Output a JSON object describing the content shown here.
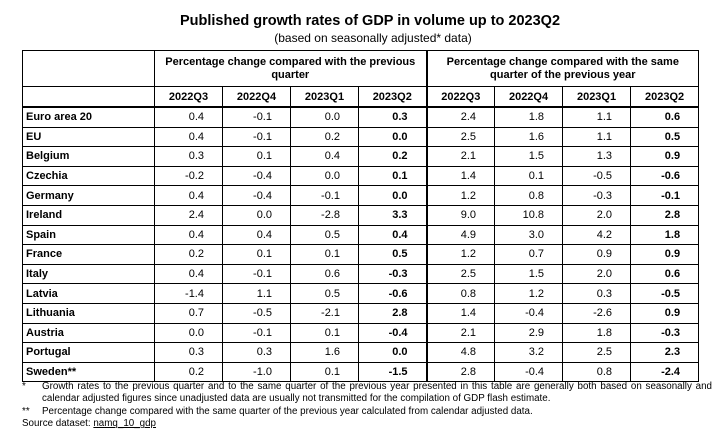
{
  "title": "Published growth rates of GDP in volume up to 2023Q2",
  "subtitle": "(based on seasonally adjusted* data)",
  "table": {
    "group_headers": [
      "Percentage change compared with the previous quarter",
      "Percentage change compared with the same quarter of the previous year"
    ],
    "periods": [
      "2022Q3",
      "2022Q4",
      "2023Q1",
      "2023Q2",
      "2022Q3",
      "2022Q4",
      "2023Q1",
      "2023Q2"
    ],
    "rows": [
      {
        "country": "Euro area 20",
        "values": [
          "0.4",
          "-0.1",
          "0.0",
          "0.3",
          "2.4",
          "1.8",
          "1.1",
          "0.6"
        ]
      },
      {
        "country": "EU",
        "values": [
          "0.4",
          "-0.1",
          "0.2",
          "0.0",
          "2.5",
          "1.6",
          "1.1",
          "0.5"
        ]
      },
      {
        "country": "Belgium",
        "values": [
          "0.3",
          "0.1",
          "0.4",
          "0.2",
          "2.1",
          "1.5",
          "1.3",
          "0.9"
        ]
      },
      {
        "country": "Czechia",
        "values": [
          "-0.2",
          "-0.4",
          "0.0",
          "0.1",
          "1.4",
          "0.1",
          "-0.5",
          "-0.6"
        ]
      },
      {
        "country": "Germany",
        "values": [
          "0.4",
          "-0.4",
          "-0.1",
          "0.0",
          "1.2",
          "0.8",
          "-0.3",
          "-0.1"
        ]
      },
      {
        "country": "Ireland",
        "values": [
          "2.4",
          "0.0",
          "-2.8",
          "3.3",
          "9.0",
          "10.8",
          "2.0",
          "2.8"
        ]
      },
      {
        "country": "Spain",
        "values": [
          "0.4",
          "0.4",
          "0.5",
          "0.4",
          "4.9",
          "3.0",
          "4.2",
          "1.8"
        ]
      },
      {
        "country": "France",
        "values": [
          "0.2",
          "0.1",
          "0.1",
          "0.5",
          "1.2",
          "0.7",
          "0.9",
          "0.9"
        ]
      },
      {
        "country": "Italy",
        "values": [
          "0.4",
          "-0.1",
          "0.6",
          "-0.3",
          "2.5",
          "1.5",
          "2.0",
          "0.6"
        ]
      },
      {
        "country": "Latvia",
        "values": [
          "-1.4",
          "1.1",
          "0.5",
          "-0.6",
          "0.8",
          "1.2",
          "0.3",
          "-0.5"
        ]
      },
      {
        "country": "Lithuania",
        "values": [
          "0.7",
          "-0.5",
          "-2.1",
          "2.8",
          "1.4",
          "-0.4",
          "-2.6",
          "0.9"
        ]
      },
      {
        "country": "Austria",
        "values": [
          "0.0",
          "-0.1",
          "0.1",
          "-0.4",
          "2.1",
          "2.9",
          "1.8",
          "-0.3"
        ]
      },
      {
        "country": "Portugal",
        "values": [
          "0.3",
          "0.3",
          "1.6",
          "0.0",
          "4.8",
          "3.2",
          "2.5",
          "2.3"
        ]
      },
      {
        "country": "Sweden**",
        "values": [
          "0.2",
          "-1.0",
          "0.1",
          "-1.5",
          "2.8",
          "-0.4",
          "0.8",
          "-2.4"
        ]
      }
    ]
  },
  "notes": [
    {
      "mark": "*",
      "text": "Growth rates to the previous quarter and to the same quarter of the previous year presented in this table are generally both based on seasonally and calendar adjusted figures since unadjusted data are usually not transmitted for the compilation of GDP flash estimate."
    },
    {
      "mark": "**",
      "text": "Percentage change compared with the same quarter of the previous year calculated from calendar adjusted data."
    }
  ],
  "source": {
    "label": "Source dataset:",
    "link": "namq_10_gdp"
  }
}
